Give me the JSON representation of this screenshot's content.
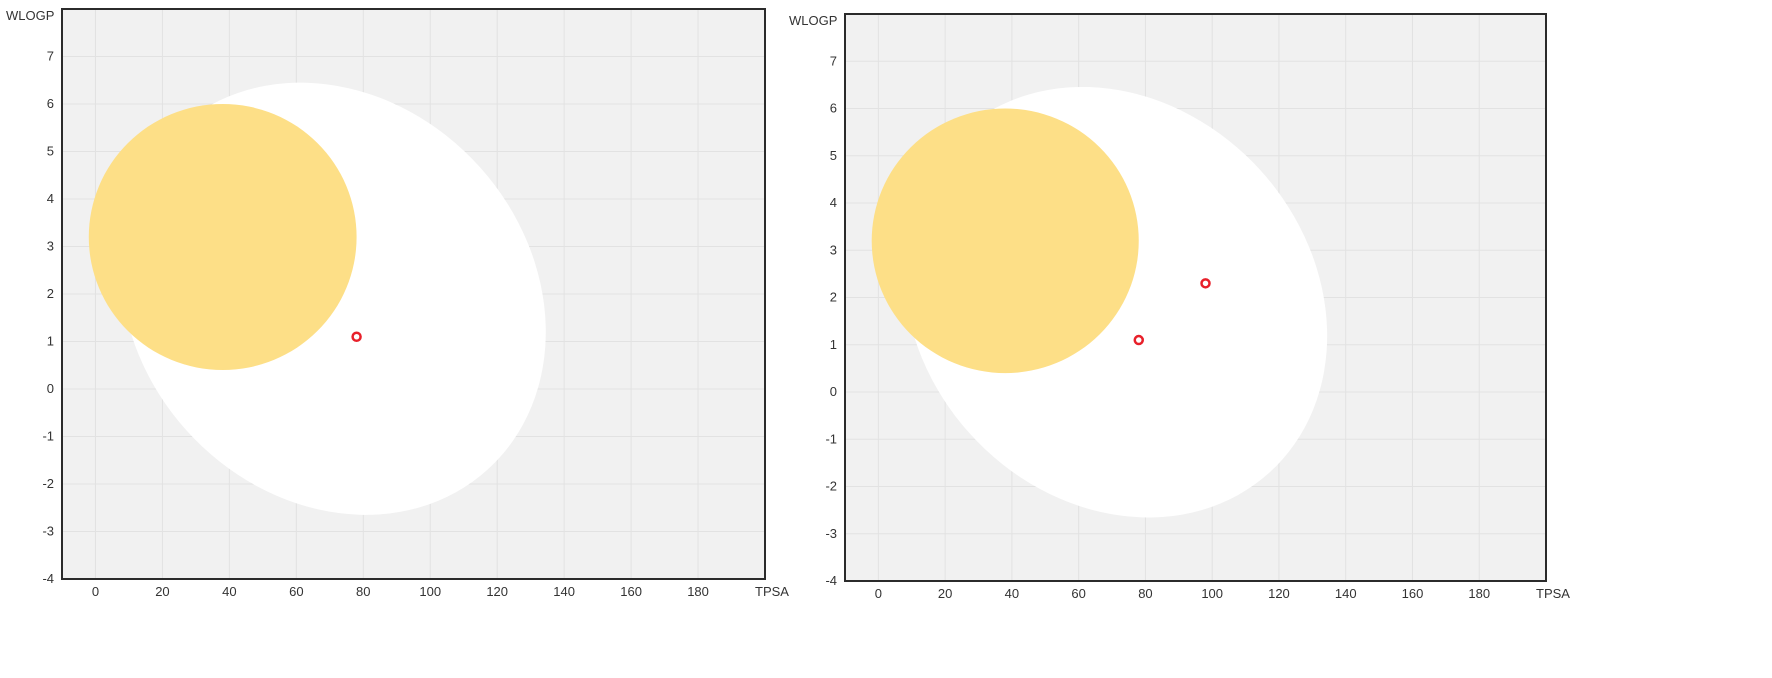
{
  "chart_data": [
    {
      "type": "scatter",
      "title": "",
      "xlabel": "TPSA",
      "ylabel": "WLOGP",
      "xlim": [
        -10,
        200
      ],
      "ylim": [
        -4,
        8
      ],
      "xticks": [
        "0",
        "20",
        "40",
        "60",
        "80",
        "100",
        "120",
        "140",
        "160",
        "180"
      ],
      "yticks": [
        "-4",
        "-3",
        "-2",
        "-1",
        "0",
        "1",
        "2",
        "3",
        "4",
        "5",
        "6",
        "7"
      ],
      "grid": true,
      "regions": [
        {
          "kind": "egg-white",
          "color": "#ffffff",
          "center": [
            71,
            1.9
          ],
          "rx": 68.8,
          "ry": 4.15,
          "rotate_deg": 48
        },
        {
          "kind": "yolk",
          "color": "#fddf87",
          "center": [
            38,
            3.2
          ],
          "rx": 40,
          "ry": 2.8,
          "rotate_deg": 0
        }
      ],
      "points": [
        {
          "x": 78,
          "y": 1.1,
          "color": "#e8202a"
        }
      ]
    },
    {
      "type": "scatter",
      "title": "",
      "xlabel": "TPSA",
      "ylabel": "WLOGP",
      "xlim": [
        -10,
        200
      ],
      "ylim": [
        -4,
        8
      ],
      "xticks": [
        "0",
        "20",
        "40",
        "60",
        "80",
        "100",
        "120",
        "140",
        "160",
        "180"
      ],
      "yticks": [
        "-4",
        "-3",
        "-2",
        "-1",
        "0",
        "1",
        "2",
        "3",
        "4",
        "5",
        "6",
        "7"
      ],
      "grid": true,
      "regions": [
        {
          "kind": "egg-white",
          "color": "#ffffff",
          "center": [
            71,
            1.9
          ],
          "rx": 68.8,
          "ry": 4.15,
          "rotate_deg": 48
        },
        {
          "kind": "yolk",
          "color": "#fddf87",
          "center": [
            38,
            3.2
          ],
          "rx": 40,
          "ry": 2.8,
          "rotate_deg": 0
        }
      ],
      "points": [
        {
          "x": 78,
          "y": 1.1,
          "color": "#e8202a"
        },
        {
          "x": 98,
          "y": 2.3,
          "color": "#e8202a"
        }
      ]
    }
  ]
}
